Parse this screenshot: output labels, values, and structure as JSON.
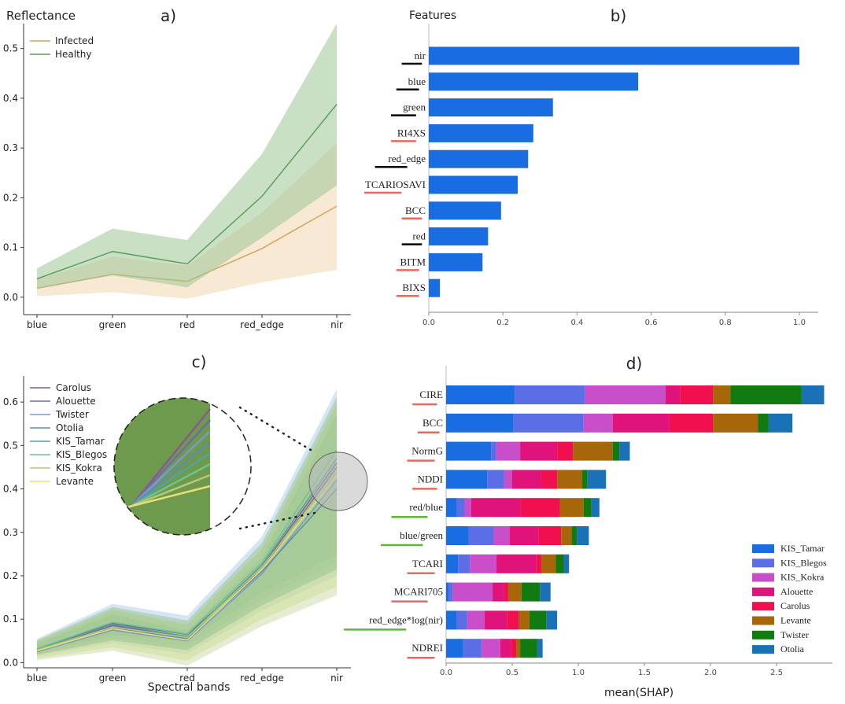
{
  "chart_data": [
    {
      "panel": "a)",
      "type": "line",
      "ylabel": "Reflectance",
      "categories": [
        "blue",
        "green",
        "red",
        "red_edge",
        "nir"
      ],
      "ylim": [
        -0.035,
        0.55
      ],
      "yticks": [
        "0.0",
        "0.1",
        "0.2",
        "0.3",
        "0.4",
        "0.5"
      ],
      "legend_position": "top-left",
      "series": [
        {
          "name": "Infected",
          "color": "#d4a65a",
          "fill": "#f2d7b0",
          "values": [
            0.018,
            0.046,
            0.032,
            0.098,
            0.183
          ],
          "upper": [
            0.035,
            0.082,
            0.063,
            0.17,
            0.31
          ],
          "lower": [
            0.002,
            0.01,
            -0.003,
            0.03,
            0.055
          ]
        },
        {
          "name": "Healthy",
          "color": "#5f9e5c",
          "fill": "#9cc796",
          "values": [
            0.037,
            0.092,
            0.067,
            0.203,
            0.388
          ],
          "upper": [
            0.058,
            0.138,
            0.115,
            0.288,
            0.55
          ],
          "lower": [
            0.017,
            0.044,
            0.02,
            0.12,
            0.225
          ]
        }
      ]
    },
    {
      "panel": "b)",
      "type": "bar",
      "orientation": "horizontal",
      "ylabel": "Features",
      "categories": [
        "nir",
        "blue",
        "green",
        "RI4XS",
        "red_edge",
        "TCARIOSAVI",
        "BCC",
        "red",
        "BITM",
        "BIXS"
      ],
      "underline_colors": [
        "#000000",
        "#000000",
        "#000000",
        "#e8685f",
        "#000000",
        "#e8685f",
        "#e8685f",
        "#000000",
        "#e8685f",
        "#e8685f"
      ],
      "values": [
        1.0,
        0.565,
        0.335,
        0.282,
        0.268,
        0.24,
        0.195,
        0.16,
        0.145,
        0.03
      ],
      "xlim": [
        0,
        1.05
      ],
      "xticks": [
        "0.0",
        "0.2",
        "0.4",
        "0.6",
        "0.8",
        "1.0"
      ],
      "color": "#1a6de0"
    },
    {
      "panel": "c)",
      "type": "line",
      "xlabel": "Spectral bands",
      "categories": [
        "blue",
        "green",
        "red",
        "red_edge",
        "nir"
      ],
      "ylim": [
        -0.012,
        0.66
      ],
      "yticks": [
        "0.0",
        "0.1",
        "0.2",
        "0.3",
        "0.4",
        "0.5",
        "0.6"
      ],
      "legend_position": "top-left",
      "band_upper": [
        0.055,
        0.135,
        0.108,
        0.29,
        0.63
      ],
      "band_lower": [
        0.015,
        0.045,
        0.02,
        0.12,
        0.2
      ],
      "band_color": "#8cb465",
      "series": [
        {
          "name": "Carolus",
          "color": "#8a5a8c",
          "values": [
            0.028,
            0.085,
            0.06,
            0.22,
            0.46
          ]
        },
        {
          "name": "Alouette",
          "color": "#6f6da8",
          "values": [
            0.03,
            0.09,
            0.065,
            0.215,
            0.45
          ]
        },
        {
          "name": "Twister",
          "color": "#7e98c9",
          "values": [
            0.025,
            0.075,
            0.05,
            0.205,
            0.42
          ]
        },
        {
          "name": "Otolia",
          "color": "#5f8fa8",
          "values": [
            0.026,
            0.08,
            0.055,
            0.21,
            0.4
          ]
        },
        {
          "name": "KIS_Tamar",
          "color": "#55a0a0",
          "values": [
            0.03,
            0.088,
            0.06,
            0.225,
            0.47
          ]
        },
        {
          "name": "KIS_Blegos",
          "color": "#6fc48a",
          "values": [
            0.032,
            0.093,
            0.066,
            0.23,
            0.49
          ]
        },
        {
          "name": "KIS_Kokra",
          "color": "#b6c77a",
          "values": [
            0.029,
            0.082,
            0.058,
            0.22,
            0.44
          ]
        },
        {
          "name": "Levante",
          "color": "#e8df70",
          "values": [
            0.027,
            0.078,
            0.052,
            0.215,
            0.43
          ]
        }
      ]
    },
    {
      "panel": "d)",
      "type": "bar",
      "orientation": "horizontal",
      "stacked": true,
      "xlabel": "mean(SHAP)",
      "categories": [
        "CIRE",
        "BCC",
        "NormG",
        "NDDI",
        "red/blue",
        "blue/green",
        "TCARI",
        "MCARI705",
        "red_edge*log(nir)",
        "NDREI"
      ],
      "underline_colors": [
        "#e8685f",
        "#e8685f",
        "#e8685f",
        "#e8685f",
        "#5fb832",
        "#5fb832",
        "#e8685f",
        "#e8685f",
        "#5fb832",
        "#e8685f"
      ],
      "xlim": [
        0,
        2.95
      ],
      "xticks": [
        "0.0",
        "0.5",
        "1.0",
        "1.5",
        "2.0",
        "2.5"
      ],
      "legend_position": "bottom-right",
      "series": [
        {
          "name": "KIS_Tamar",
          "color": "#1a6de0",
          "values": [
            0.52,
            0.51,
            0.34,
            0.31,
            0.08,
            0.17,
            0.09,
            0.02,
            0.08,
            0.13
          ]
        },
        {
          "name": "KIS_Blegos",
          "color": "#5c6ee6",
          "values": [
            0.53,
            0.53,
            0.04,
            0.13,
            0.06,
            0.19,
            0.09,
            0.03,
            0.08,
            0.14
          ]
        },
        {
          "name": "KIS_Kokra",
          "color": "#c84fc9",
          "values": [
            0.61,
            0.22,
            0.18,
            0.06,
            0.05,
            0.12,
            0.2,
            0.3,
            0.13,
            0.14
          ]
        },
        {
          "name": "Alouette",
          "color": "#e0137a",
          "values": [
            0.11,
            0.43,
            0.28,
            0.22,
            0.37,
            0.22,
            0.3,
            0.09,
            0.17,
            0.08
          ]
        },
        {
          "name": "Carolus",
          "color": "#f0104f",
          "values": [
            0.25,
            0.33,
            0.12,
            0.12,
            0.3,
            0.17,
            0.04,
            0.03,
            0.09,
            0.04
          ]
        },
        {
          "name": "Levante",
          "color": "#a8660a",
          "values": [
            0.13,
            0.34,
            0.3,
            0.19,
            0.18,
            0.08,
            0.11,
            0.1,
            0.08,
            0.03
          ]
        },
        {
          "name": "Twister",
          "color": "#117a11",
          "values": [
            0.54,
            0.08,
            0.05,
            0.04,
            0.06,
            0.04,
            0.06,
            0.14,
            0.13,
            0.13
          ]
        },
        {
          "name": "Otolia",
          "color": "#1b71b5",
          "values": [
            0.17,
            0.18,
            0.08,
            0.14,
            0.06,
            0.09,
            0.04,
            0.08,
            0.08,
            0.04
          ]
        }
      ]
    }
  ]
}
